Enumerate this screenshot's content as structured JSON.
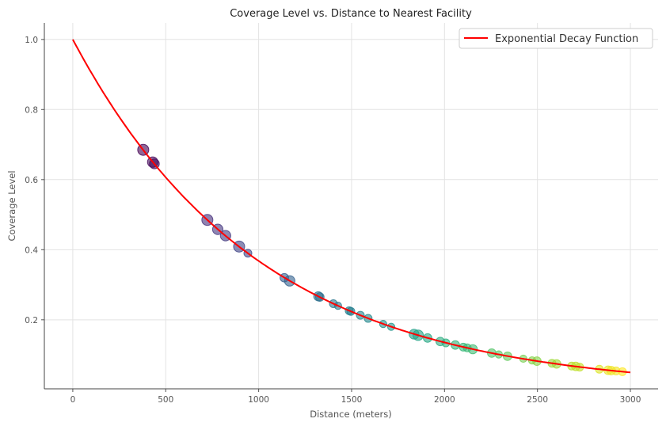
{
  "chart_data": {
    "type": "scatter",
    "title": "Coverage Level vs. Distance to Nearest Facility",
    "xlabel": "Distance (meters)",
    "ylabel": "Coverage Level",
    "xlim": [
      -153,
      3149
    ],
    "ylim": [
      0.003,
      1.047
    ],
    "xticks": [
      0,
      500,
      1000,
      1500,
      2000,
      2500,
      3000
    ],
    "yticks": [
      0.2,
      0.4,
      0.6,
      0.8,
      1.0
    ],
    "ytick_labels": [
      "0.2",
      "0.4",
      "0.6",
      "0.8",
      "1.0"
    ],
    "grid": true,
    "legend": {
      "position": "top-right",
      "entries": [
        "Exponential Decay Function"
      ]
    },
    "curve": {
      "name": "Exponential Decay Function",
      "formula": "exp(-x/1000)",
      "x_range": [
        0,
        3000
      ],
      "color": "#ff0000"
    },
    "colormap": "viridis",
    "points": [
      {
        "x": 379,
        "y": 0.685,
        "size": 1.0
      },
      {
        "x": 430,
        "y": 0.65,
        "size": 0.9
      },
      {
        "x": 439,
        "y": 0.645,
        "size": 0.8
      },
      {
        "x": 724,
        "y": 0.485,
        "size": 1.0
      },
      {
        "x": 780,
        "y": 0.458,
        "size": 0.9
      },
      {
        "x": 822,
        "y": 0.44,
        "size": 0.9
      },
      {
        "x": 895,
        "y": 0.409,
        "size": 1.0
      },
      {
        "x": 942,
        "y": 0.39,
        "size": 0.5
      },
      {
        "x": 1138,
        "y": 0.32,
        "size": 0.6
      },
      {
        "x": 1167,
        "y": 0.311,
        "size": 0.9
      },
      {
        "x": 1321,
        "y": 0.267,
        "size": 0.7
      },
      {
        "x": 1329,
        "y": 0.265,
        "size": 0.6
      },
      {
        "x": 1402,
        "y": 0.246,
        "size": 0.5
      },
      {
        "x": 1427,
        "y": 0.24,
        "size": 0.4
      },
      {
        "x": 1487,
        "y": 0.226,
        "size": 0.5
      },
      {
        "x": 1496,
        "y": 0.224,
        "size": 0.5
      },
      {
        "x": 1547,
        "y": 0.213,
        "size": 0.5
      },
      {
        "x": 1589,
        "y": 0.204,
        "size": 0.5
      },
      {
        "x": 1670,
        "y": 0.188,
        "size": 0.4
      },
      {
        "x": 1713,
        "y": 0.18,
        "size": 0.4
      },
      {
        "x": 1836,
        "y": 0.159,
        "size": 0.8
      },
      {
        "x": 1858,
        "y": 0.156,
        "size": 0.9
      },
      {
        "x": 1909,
        "y": 0.148,
        "size": 0.6
      },
      {
        "x": 1977,
        "y": 0.138,
        "size": 0.6
      },
      {
        "x": 2007,
        "y": 0.134,
        "size": 0.5
      },
      {
        "x": 2058,
        "y": 0.128,
        "size": 0.6
      },
      {
        "x": 2101,
        "y": 0.122,
        "size": 0.5
      },
      {
        "x": 2122,
        "y": 0.12,
        "size": 0.5
      },
      {
        "x": 2152,
        "y": 0.116,
        "size": 0.7
      },
      {
        "x": 2254,
        "y": 0.105,
        "size": 0.6
      },
      {
        "x": 2292,
        "y": 0.101,
        "size": 0.4
      },
      {
        "x": 2339,
        "y": 0.096,
        "size": 0.6
      },
      {
        "x": 2424,
        "y": 0.089,
        "size": 0.4
      },
      {
        "x": 2471,
        "y": 0.084,
        "size": 0.4
      },
      {
        "x": 2497,
        "y": 0.082,
        "size": 0.6
      },
      {
        "x": 2578,
        "y": 0.076,
        "size": 0.5
      },
      {
        "x": 2603,
        "y": 0.074,
        "size": 0.6
      },
      {
        "x": 2684,
        "y": 0.068,
        "size": 0.5
      },
      {
        "x": 2706,
        "y": 0.067,
        "size": 0.6
      },
      {
        "x": 2727,
        "y": 0.065,
        "size": 0.5
      },
      {
        "x": 2833,
        "y": 0.059,
        "size": 0.5
      },
      {
        "x": 2880,
        "y": 0.056,
        "size": 0.6
      },
      {
        "x": 2897,
        "y": 0.055,
        "size": 0.6
      },
      {
        "x": 2923,
        "y": 0.054,
        "size": 0.5
      },
      {
        "x": 2957,
        "y": 0.052,
        "size": 0.5
      }
    ]
  }
}
